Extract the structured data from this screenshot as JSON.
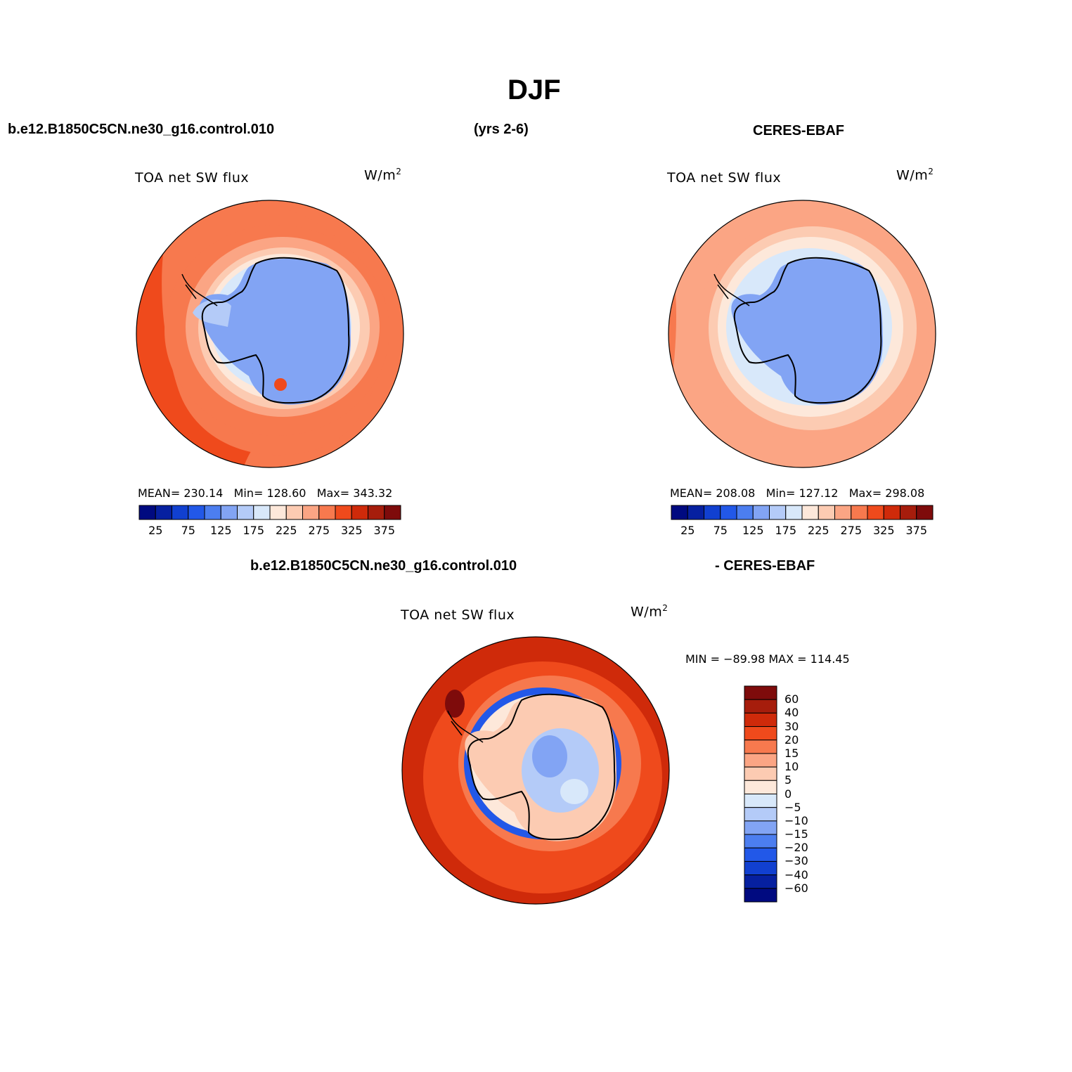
{
  "title": "DJF",
  "top_left_header": "b.e12.B1850C5CN.ne30_g16.control.010",
  "top_center_header": "(yrs 2-6)",
  "top_right_header": "CERES-EBAF",
  "bottom_header_left": "b.e12.B1850C5CN.ne30_g16.control.010",
  "bottom_header_right": "- CERES-EBAF",
  "chart_data": [
    {
      "type": "heatmap",
      "projection": "south-polar-stereographic",
      "title": "TOA net SW flux",
      "units": "W/m",
      "units_sup": "2",
      "stats": "MEAN= 230.14   Min= 128.60   Max= 343.32",
      "mean": 230.14,
      "min": 128.6,
      "max": 343.32,
      "legend_ticks": [
        "25",
        "75",
        "125",
        "175",
        "225",
        "275",
        "325",
        "375"
      ],
      "legend_colors": [
        "#000a80",
        "#0620a0",
        "#1140d0",
        "#2258e8",
        "#4c7ef0",
        "#82a4f4",
        "#b4cbf8",
        "#d8e8fa",
        "#fde8da",
        "#fccbb2",
        "#fba584",
        "#f7794e",
        "#ef4a1c",
        "#cf2a0a",
        "#a61d0c",
        "#7e0b0b"
      ]
    },
    {
      "type": "heatmap",
      "projection": "south-polar-stereographic",
      "title": "TOA net SW flux",
      "units": "W/m",
      "units_sup": "2",
      "stats": "MEAN= 208.08   Min= 127.12   Max= 298.08",
      "mean": 208.08,
      "min": 127.12,
      "max": 298.08,
      "legend_ticks": [
        "25",
        "75",
        "125",
        "175",
        "225",
        "275",
        "325",
        "375"
      ],
      "legend_colors": [
        "#000a80",
        "#0620a0",
        "#1140d0",
        "#2258e8",
        "#4c7ef0",
        "#82a4f4",
        "#b4cbf8",
        "#d8e8fa",
        "#fde8da",
        "#fccbb2",
        "#fba584",
        "#f7794e",
        "#ef4a1c",
        "#cf2a0a",
        "#a61d0c",
        "#7e0b0b"
      ]
    },
    {
      "type": "heatmap",
      "projection": "south-polar-stereographic",
      "title": "TOA net SW flux",
      "units": "W/m",
      "units_sup": "2",
      "stats": "MIN = −89.98 MAX = 114.45",
      "min": -89.98,
      "max": 114.45,
      "legend_ticks": [
        "60",
        "40",
        "30",
        "20",
        "15",
        "10",
        "5",
        "0",
        "−5",
        "−10",
        "−15",
        "−20",
        "−30",
        "−40",
        "−60"
      ],
      "legend_colors": [
        "#7e0b0b",
        "#a61d0c",
        "#cf2a0a",
        "#ef4a1c",
        "#f7794e",
        "#fba584",
        "#fccbb2",
        "#fde8da",
        "#d8e8fa",
        "#b4cbf8",
        "#82a4f4",
        "#4c7ef0",
        "#2258e8",
        "#1140d0",
        "#0620a0",
        "#000a80"
      ]
    }
  ]
}
